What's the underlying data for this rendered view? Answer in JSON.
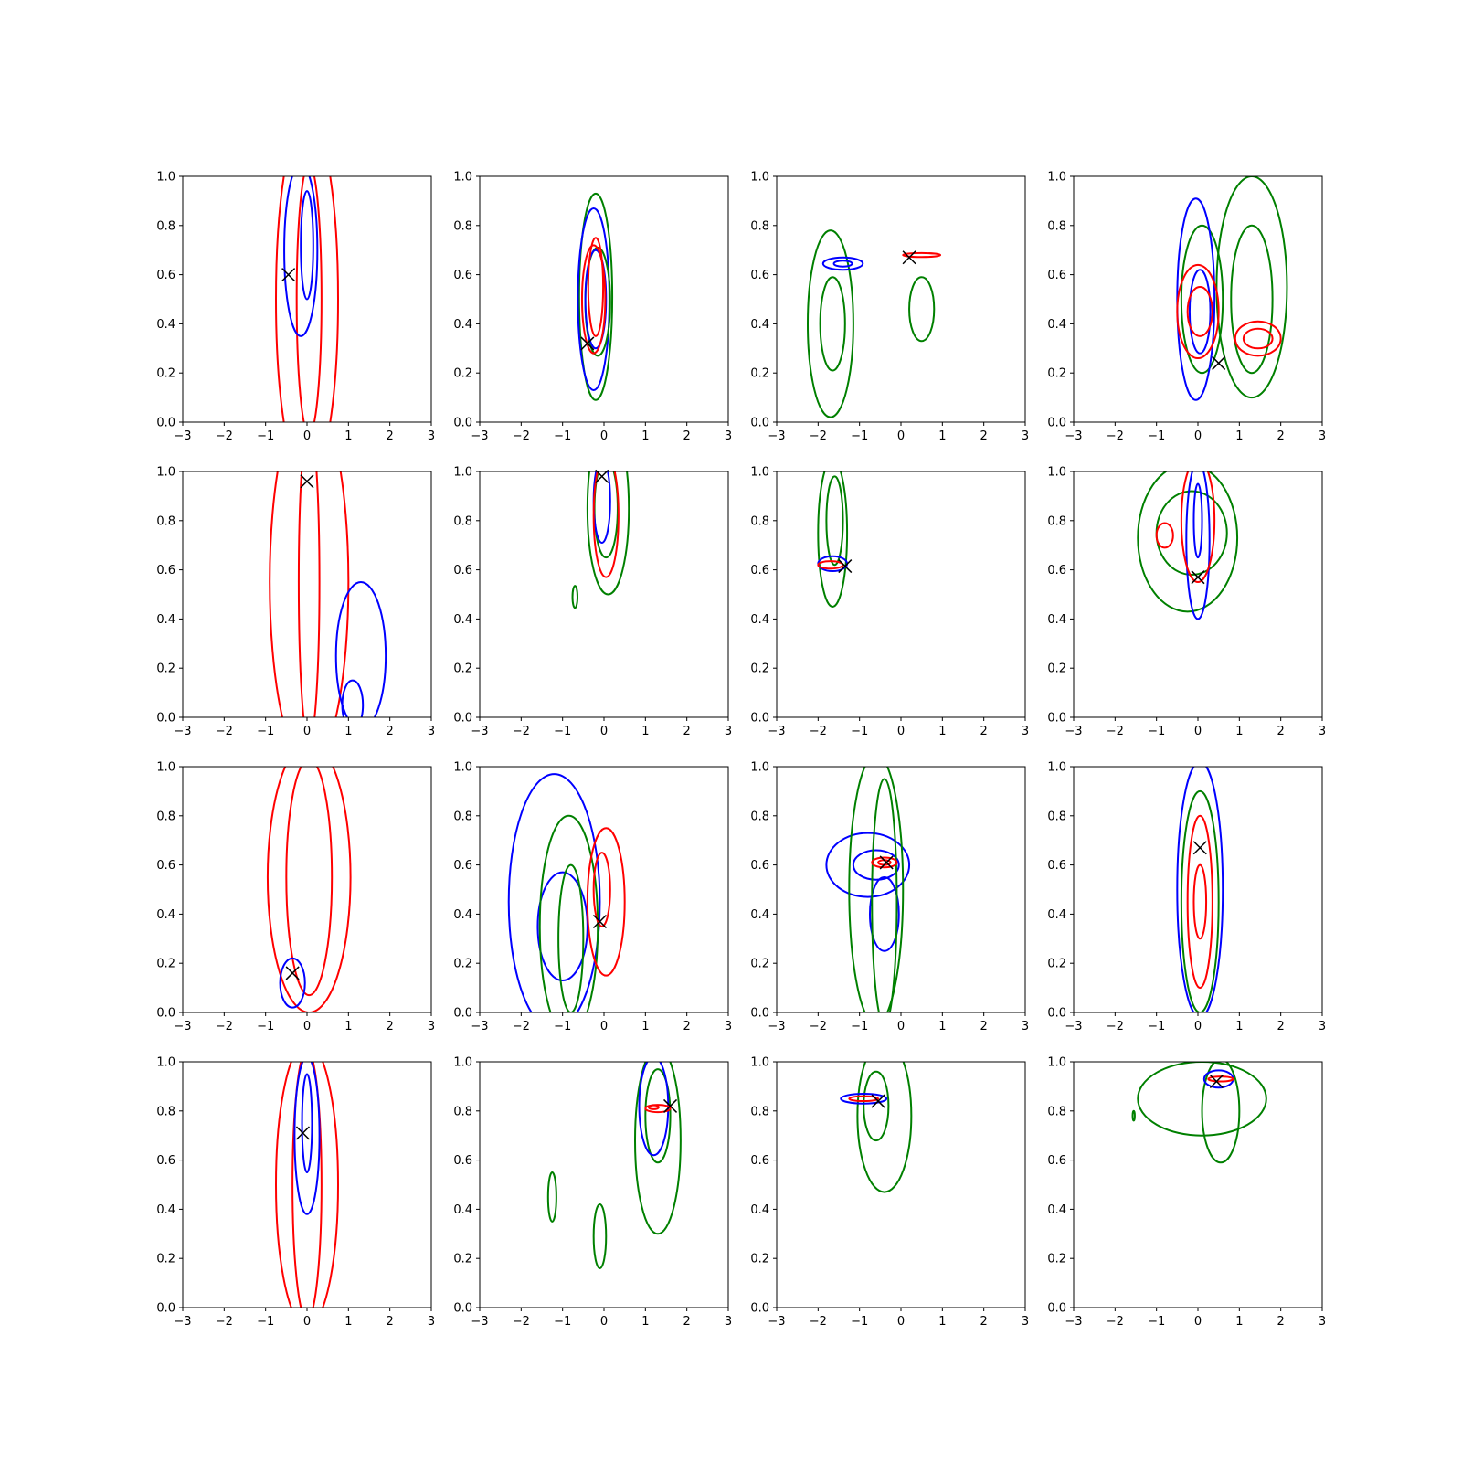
{
  "chart_data": {
    "type": "contour",
    "layout": {
      "rows": 4,
      "cols": 4
    },
    "shared_axes": {
      "xlim": [
        -3,
        3
      ],
      "ylim": [
        0.0,
        1.0
      ],
      "x_ticks": [
        "−3",
        "−2",
        "−1",
        "0",
        "1",
        "2",
        "3"
      ],
      "y_ticks": [
        "0.0",
        "0.2",
        "0.4",
        "0.6",
        "0.8",
        "1.0"
      ],
      "grid": false
    },
    "colors": {
      "blue": "#0000ff",
      "green": "#008000",
      "red": "#ff0000",
      "marker": "#000000"
    },
    "panels": [
      {
        "marker": [
          -0.45,
          0.6
        ],
        "contours": [
          {
            "color": "red",
            "center": [
              0.0,
              0.5
            ],
            "rx": 0.75,
            "ry": 0.75
          },
          {
            "color": "red",
            "center": [
              0.05,
              0.5
            ],
            "rx": 0.3,
            "ry": 0.55
          },
          {
            "color": "blue",
            "center": [
              -0.15,
              0.7
            ],
            "rx": 0.4,
            "ry": 0.35
          },
          {
            "color": "blue",
            "center": [
              0.0,
              0.72
            ],
            "rx": 0.15,
            "ry": 0.22
          }
        ]
      },
      {
        "marker": [
          -0.4,
          0.32
        ],
        "contours": [
          {
            "color": "green",
            "center": [
              -0.2,
              0.51
            ],
            "rx": 0.4,
            "ry": 0.42
          },
          {
            "color": "blue",
            "center": [
              -0.25,
              0.5
            ],
            "rx": 0.38,
            "ry": 0.37
          },
          {
            "color": "green",
            "center": [
              -0.15,
              0.49
            ],
            "rx": 0.3,
            "ry": 0.22
          },
          {
            "color": "blue",
            "center": [
              -0.2,
              0.5
            ],
            "rx": 0.25,
            "ry": 0.2
          },
          {
            "color": "red",
            "center": [
              -0.25,
              0.5
            ],
            "rx": 0.28,
            "ry": 0.22
          },
          {
            "color": "red",
            "center": [
              -0.2,
              0.55
            ],
            "rx": 0.18,
            "ry": 0.2
          }
        ]
      },
      {
        "marker": [
          0.2,
          0.67
        ],
        "contours": [
          {
            "color": "green",
            "center": [
              -1.7,
              0.4
            ],
            "rx": 0.55,
            "ry": 0.38
          },
          {
            "color": "green",
            "center": [
              -1.65,
              0.4
            ],
            "rx": 0.3,
            "ry": 0.19
          },
          {
            "color": "green",
            "center": [
              0.5,
              0.46
            ],
            "rx": 0.3,
            "ry": 0.13
          },
          {
            "color": "blue",
            "center": [
              -1.4,
              0.645
            ],
            "rx": 0.48,
            "ry": 0.025
          },
          {
            "color": "blue",
            "center": [
              -1.4,
              0.645
            ],
            "rx": 0.22,
            "ry": 0.012
          },
          {
            "color": "red",
            "center": [
              0.5,
              0.68
            ],
            "rx": 0.45,
            "ry": 0.008
          }
        ]
      },
      {
        "marker": [
          0.5,
          0.24
        ],
        "contours": [
          {
            "color": "green",
            "center": [
              1.3,
              0.55
            ],
            "rx": 0.85,
            "ry": 0.45
          },
          {
            "color": "green",
            "center": [
              1.3,
              0.5
            ],
            "rx": 0.5,
            "ry": 0.3
          },
          {
            "color": "green",
            "center": [
              0.1,
              0.5
            ],
            "rx": 0.5,
            "ry": 0.3
          },
          {
            "color": "blue",
            "center": [
              -0.05,
              0.5
            ],
            "rx": 0.45,
            "ry": 0.41
          },
          {
            "color": "blue",
            "center": [
              0.05,
              0.45
            ],
            "rx": 0.25,
            "ry": 0.17
          },
          {
            "color": "red",
            "center": [
              0.0,
              0.45
            ],
            "rx": 0.5,
            "ry": 0.19
          },
          {
            "color": "red",
            "center": [
              0.05,
              0.45
            ],
            "rx": 0.3,
            "ry": 0.1
          },
          {
            "color": "red",
            "center": [
              1.45,
              0.34
            ],
            "rx": 0.55,
            "ry": 0.07
          },
          {
            "color": "red",
            "center": [
              1.45,
              0.34
            ],
            "rx": 0.35,
            "ry": 0.04
          }
        ]
      },
      {
        "marker": [
          0.0,
          0.96
        ],
        "contours": [
          {
            "color": "red",
            "center": [
              0.05,
              0.55
            ],
            "rx": 0.95,
            "ry": 0.75
          },
          {
            "color": "red",
            "center": [
              0.05,
              0.55
            ],
            "rx": 0.25,
            "ry": 0.65
          },
          {
            "color": "blue",
            "center": [
              1.3,
              0.25
            ],
            "rx": 0.6,
            "ry": 0.3
          },
          {
            "color": "blue",
            "center": [
              1.1,
              0.05
            ],
            "rx": 0.25,
            "ry": 0.1
          }
        ]
      },
      {
        "marker": [
          -0.05,
          0.98
        ],
        "contours": [
          {
            "color": "green",
            "center": [
              0.1,
              0.85
            ],
            "rx": 0.5,
            "ry": 0.35
          },
          {
            "color": "green",
            "center": [
              0.05,
              0.85
            ],
            "rx": 0.28,
            "ry": 0.2
          },
          {
            "color": "blue",
            "center": [
              -0.05,
              0.88
            ],
            "rx": 0.2,
            "ry": 0.17
          },
          {
            "color": "red",
            "center": [
              0.05,
              0.82
            ],
            "rx": 0.3,
            "ry": 0.25
          },
          {
            "color": "green",
            "center": [
              -0.7,
              0.49
            ],
            "rx": 0.06,
            "ry": 0.045
          }
        ]
      },
      {
        "marker": [
          -1.35,
          0.615
        ],
        "contours": [
          {
            "color": "green",
            "center": [
              -1.65,
              0.75
            ],
            "rx": 0.35,
            "ry": 0.3
          },
          {
            "color": "green",
            "center": [
              -1.6,
              0.8
            ],
            "rx": 0.2,
            "ry": 0.18
          },
          {
            "color": "blue",
            "center": [
              -1.65,
              0.625
            ],
            "rx": 0.35,
            "ry": 0.03
          },
          {
            "color": "red",
            "center": [
              -1.7,
              0.62
            ],
            "rx": 0.3,
            "ry": 0.015
          }
        ]
      },
      {
        "marker": [
          0.0,
          0.57
        ],
        "contours": [
          {
            "color": "green",
            "center": [
              -0.25,
              0.73
            ],
            "rx": 1.2,
            "ry": 0.3
          },
          {
            "color": "green",
            "center": [
              -0.15,
              0.75
            ],
            "rx": 0.85,
            "ry": 0.17
          },
          {
            "color": "blue",
            "center": [
              0.0,
              0.72
            ],
            "rx": 0.28,
            "ry": 0.32
          },
          {
            "color": "blue",
            "center": [
              0.0,
              0.8
            ],
            "rx": 0.1,
            "ry": 0.15
          },
          {
            "color": "red",
            "center": [
              0.0,
              0.8
            ],
            "rx": 0.4,
            "ry": 0.25
          },
          {
            "color": "red",
            "center": [
              -0.8,
              0.74
            ],
            "rx": 0.2,
            "ry": 0.05
          }
        ]
      },
      {
        "marker": [
          -0.35,
          0.16
        ],
        "contours": [
          {
            "color": "red",
            "center": [
              0.05,
              0.55
            ],
            "rx": 1.0,
            "ry": 0.55
          },
          {
            "color": "red",
            "center": [
              0.05,
              0.55
            ],
            "rx": 0.55,
            "ry": 0.48
          },
          {
            "color": "blue",
            "center": [
              -0.35,
              0.12
            ],
            "rx": 0.3,
            "ry": 0.1
          }
        ]
      },
      {
        "marker": [
          -0.1,
          0.37
        ],
        "contours": [
          {
            "color": "blue",
            "center": [
              -1.2,
              0.45
            ],
            "rx": 1.1,
            "ry": 0.52
          },
          {
            "color": "blue",
            "center": [
              -1.0,
              0.35
            ],
            "rx": 0.6,
            "ry": 0.22
          },
          {
            "color": "green",
            "center": [
              -0.85,
              0.35
            ],
            "rx": 0.7,
            "ry": 0.45
          },
          {
            "color": "green",
            "center": [
              -0.8,
              0.3
            ],
            "rx": 0.3,
            "ry": 0.3
          },
          {
            "color": "red",
            "center": [
              0.05,
              0.45
            ],
            "rx": 0.45,
            "ry": 0.3
          },
          {
            "color": "red",
            "center": [
              -0.05,
              0.5
            ],
            "rx": 0.2,
            "ry": 0.15
          }
        ]
      },
      {
        "marker": [
          -0.35,
          0.61
        ],
        "contours": [
          {
            "color": "blue",
            "center": [
              -0.8,
              0.6
            ],
            "rx": 1.0,
            "ry": 0.13
          },
          {
            "color": "blue",
            "center": [
              -0.6,
              0.6
            ],
            "rx": 0.55,
            "ry": 0.06
          },
          {
            "color": "blue",
            "center": [
              -0.4,
              0.4
            ],
            "rx": 0.35,
            "ry": 0.15
          },
          {
            "color": "green",
            "center": [
              -0.6,
              0.5
            ],
            "rx": 0.65,
            "ry": 0.55
          },
          {
            "color": "green",
            "center": [
              -0.4,
              0.45
            ],
            "rx": 0.3,
            "ry": 0.5
          },
          {
            "color": "red",
            "center": [
              -0.4,
              0.61
            ],
            "rx": 0.3,
            "ry": 0.02
          },
          {
            "color": "red",
            "center": [
              -0.4,
              0.61
            ],
            "rx": 0.15,
            "ry": 0.01
          }
        ]
      },
      {
        "marker": [
          0.05,
          0.67
        ],
        "contours": [
          {
            "color": "blue",
            "center": [
              0.05,
              0.5
            ],
            "rx": 0.55,
            "ry": 0.52
          },
          {
            "color": "green",
            "center": [
              0.05,
              0.45
            ],
            "rx": 0.45,
            "ry": 0.45
          },
          {
            "color": "red",
            "center": [
              0.05,
              0.45
            ],
            "rx": 0.3,
            "ry": 0.35
          },
          {
            "color": "red",
            "center": [
              0.05,
              0.45
            ],
            "rx": 0.15,
            "ry": 0.15
          }
        ]
      },
      {
        "marker": [
          -0.1,
          0.71
        ],
        "contours": [
          {
            "color": "red",
            "center": [
              0.0,
              0.5
            ],
            "rx": 0.75,
            "ry": 0.58
          },
          {
            "color": "red",
            "center": [
              0.0,
              0.5
            ],
            "rx": 0.35,
            "ry": 0.55
          },
          {
            "color": "blue",
            "center": [
              0.0,
              0.7
            ],
            "rx": 0.3,
            "ry": 0.32
          },
          {
            "color": "blue",
            "center": [
              0.0,
              0.75
            ],
            "rx": 0.12,
            "ry": 0.2
          }
        ]
      },
      {
        "marker": [
          1.6,
          0.82
        ],
        "contours": [
          {
            "color": "green",
            "center": [
              1.3,
              0.68
            ],
            "rx": 0.55,
            "ry": 0.38
          },
          {
            "color": "green",
            "center": [
              1.3,
              0.78
            ],
            "rx": 0.3,
            "ry": 0.19
          },
          {
            "color": "blue",
            "center": [
              1.2,
              0.82
            ],
            "rx": 0.35,
            "ry": 0.2
          },
          {
            "color": "red",
            "center": [
              1.3,
              0.81
            ],
            "rx": 0.3,
            "ry": 0.015
          },
          {
            "color": "red",
            "center": [
              1.2,
              0.815
            ],
            "rx": 0.12,
            "ry": 0.008
          },
          {
            "color": "green",
            "center": [
              -1.25,
              0.45
            ],
            "rx": 0.1,
            "ry": 0.1
          },
          {
            "color": "green",
            "center": [
              -0.1,
              0.29
            ],
            "rx": 0.15,
            "ry": 0.13
          }
        ]
      },
      {
        "marker": [
          -0.55,
          0.84
        ],
        "contours": [
          {
            "color": "green",
            "center": [
              -0.4,
              0.78
            ],
            "rx": 0.65,
            "ry": 0.31
          },
          {
            "color": "green",
            "center": [
              -0.6,
              0.82
            ],
            "rx": 0.3,
            "ry": 0.14
          },
          {
            "color": "blue",
            "center": [
              -0.9,
              0.85
            ],
            "rx": 0.55,
            "ry": 0.02
          },
          {
            "color": "red",
            "center": [
              -0.9,
              0.85
            ],
            "rx": 0.35,
            "ry": 0.01
          }
        ]
      },
      {
        "marker": [
          0.45,
          0.92
        ],
        "contours": [
          {
            "color": "green",
            "center": [
              0.1,
              0.85
            ],
            "rx": 1.55,
            "ry": 0.15
          },
          {
            "color": "green",
            "center": [
              0.55,
              0.8
            ],
            "rx": 0.45,
            "ry": 0.21
          },
          {
            "color": "blue",
            "center": [
              0.5,
              0.93
            ],
            "rx": 0.35,
            "ry": 0.035
          },
          {
            "color": "red",
            "center": [
              0.55,
              0.93
            ],
            "rx": 0.3,
            "ry": 0.01
          },
          {
            "color": "green",
            "center": [
              -1.55,
              0.78
            ],
            "rx": 0.025,
            "ry": 0.02
          }
        ]
      }
    ]
  }
}
